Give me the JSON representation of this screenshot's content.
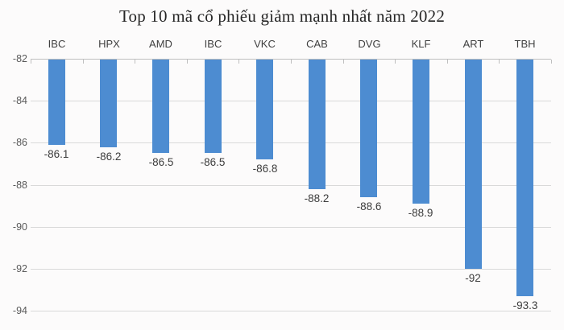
{
  "chart_data": {
    "type": "bar",
    "title": "Top 10 mã cổ phiếu giảm mạnh nhất năm 2022",
    "categories": [
      "IBC",
      "HPX",
      "AMD",
      "IBC",
      "VKC",
      "CAB",
      "DVG",
      "KLF",
      "ART",
      "TBH"
    ],
    "values": [
      -86.1,
      -86.2,
      -86.5,
      -86.5,
      -86.8,
      -88.2,
      -88.6,
      -88.9,
      -92,
      -93.3
    ],
    "value_labels": [
      "-86.1",
      "-86.2",
      "-86.5",
      "-86.5",
      "-86.8",
      "-88.2",
      "-88.6",
      "-88.9",
      "-92",
      "-93.3"
    ],
    "xlabel": "",
    "ylabel": "",
    "ylim": [
      -94,
      -82
    ],
    "y_ticks": [
      -82,
      -84,
      -86,
      -88,
      -90,
      -92,
      -94
    ],
    "y_tick_labels": [
      "-82",
      "-84",
      "-86",
      "-88",
      "-90",
      "-92",
      "-94"
    ],
    "category_axis_position": "top",
    "data_labels_position": "below-bar",
    "grid": true,
    "legend": "none",
    "colors": {
      "bar": "#4d8cd1",
      "gridline": "#d9d9d9",
      "axis_line": "#bfbfbf",
      "title_text": "#262626",
      "label_text": "#3d3d3d",
      "tick_text": "#595959",
      "background": "#fcfbfb"
    }
  }
}
